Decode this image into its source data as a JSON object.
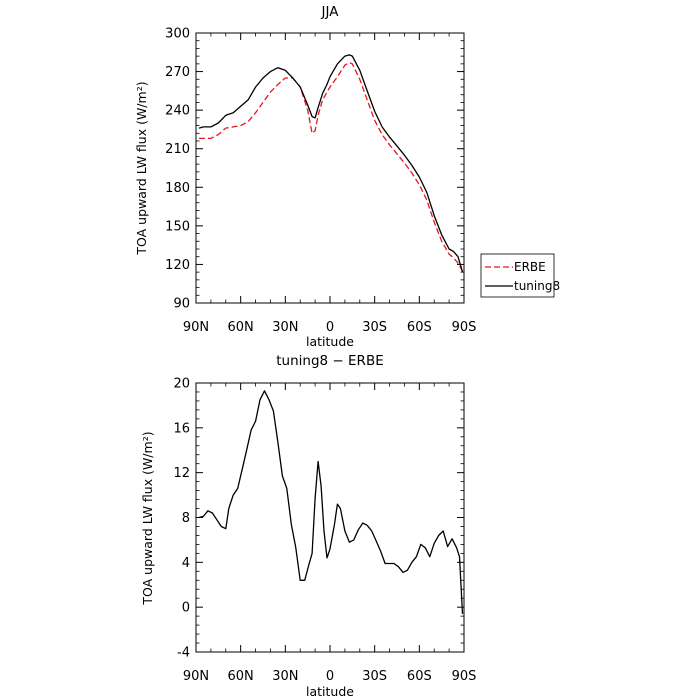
{
  "chart_data": [
    {
      "type": "line",
      "title": "JJA",
      "xlabel": "latitude",
      "ylabel": "TOA upward LW flux (W/m²)",
      "xlim": [
        90,
        -90
      ],
      "ylim": [
        90,
        300
      ],
      "xticks": [
        90,
        60,
        30,
        0,
        -30,
        -60,
        -90
      ],
      "xtick_labels": [
        "90N",
        "60N",
        "30N",
        "0",
        "30S",
        "60S",
        "90S"
      ],
      "yticks": [
        90,
        120,
        150,
        180,
        210,
        240,
        270,
        300
      ],
      "ytick_labels": [
        "90",
        "120",
        "150",
        "180",
        "210",
        "240",
        "270",
        "300"
      ],
      "legend_position": "outside-right",
      "series": [
        {
          "name": "ERBE",
          "color": "#e8141e",
          "style": "dashed",
          "x": [
            88,
            85,
            80,
            75,
            70,
            65,
            60,
            55,
            50,
            45,
            40,
            35,
            30,
            25,
            20,
            15,
            12,
            10,
            8,
            5,
            2,
            0,
            -5,
            -10,
            -13,
            -15,
            -20,
            -25,
            -30,
            -35,
            -40,
            -45,
            -50,
            -55,
            -60,
            -65,
            -70,
            -75,
            -80,
            -83,
            -86,
            -89
          ],
          "y": [
            218,
            218,
            218,
            221,
            226,
            227,
            228,
            231,
            238,
            246,
            254,
            260,
            265,
            265,
            258,
            240,
            222,
            224,
            236,
            248,
            254,
            258,
            266,
            275,
            277,
            276,
            264,
            248,
            232,
            221,
            213,
            206,
            199,
            191,
            182,
            170,
            153,
            138,
            128,
            125,
            121,
            115
          ]
        },
        {
          "name": "tuning8",
          "color": "#000000",
          "style": "solid",
          "x": [
            88,
            85,
            80,
            75,
            70,
            65,
            60,
            55,
            50,
            45,
            40,
            35,
            30,
            25,
            20,
            15,
            12,
            10,
            8,
            5,
            2,
            0,
            -5,
            -10,
            -13,
            -15,
            -20,
            -25,
            -30,
            -35,
            -40,
            -45,
            -50,
            -55,
            -60,
            -65,
            -70,
            -75,
            -80,
            -83,
            -86,
            -89
          ],
          "y": [
            226,
            227,
            227,
            230,
            236,
            238,
            243,
            248,
            258,
            265,
            270,
            273,
            271,
            265,
            258,
            244,
            235,
            234,
            242,
            253,
            260,
            266,
            276,
            282,
            283,
            282,
            271,
            255,
            239,
            227,
            219,
            212,
            205,
            197,
            188,
            176,
            158,
            143,
            132,
            130,
            126,
            114
          ]
        }
      ]
    },
    {
      "type": "line",
      "title": "tuning8 − ERBE",
      "xlabel": "latitude",
      "ylabel": "TOA upward LW flux (W/m²)",
      "xlim": [
        90,
        -90
      ],
      "ylim": [
        -4,
        20
      ],
      "xticks": [
        90,
        60,
        30,
        0,
        -30,
        -60,
        -90
      ],
      "xtick_labels": [
        "90N",
        "60N",
        "30N",
        "0",
        "30S",
        "60S",
        "90S"
      ],
      "yticks": [
        -4,
        0,
        4,
        8,
        12,
        16,
        20
      ],
      "ytick_labels": [
        "-4",
        "0",
        "4",
        "8",
        "12",
        "16",
        "20"
      ],
      "series": [
        {
          "color": "#000000",
          "style": "solid",
          "x": [
            88,
            85,
            82,
            79,
            76,
            73,
            70,
            68,
            65,
            62,
            59,
            56,
            53,
            50,
            47,
            44,
            41,
            38,
            35,
            32,
            29,
            26,
            23,
            20,
            17,
            14,
            12,
            10,
            8,
            6,
            4,
            2,
            0,
            -3,
            -5,
            -7,
            -10,
            -13,
            -16,
            -19,
            -22,
            -25,
            -28,
            -31,
            -34,
            -37,
            -40,
            -43,
            -46,
            -49,
            -52,
            -55,
            -58,
            -61,
            -64,
            -67,
            -70,
            -73,
            -76,
            -79,
            -82,
            -85,
            -87,
            -89
          ],
          "y": [
            8.0,
            8.1,
            8.6,
            8.4,
            7.8,
            7.2,
            7.0,
            8.8,
            10.0,
            10.6,
            12.3,
            14.0,
            15.8,
            16.6,
            18.5,
            19.3,
            18.5,
            17.5,
            14.7,
            11.7,
            10.6,
            7.4,
            5.3,
            2.4,
            2.4,
            3.9,
            4.8,
            9.7,
            13.0,
            10.8,
            6.8,
            4.4,
            5.2,
            7.4,
            9.2,
            8.8,
            6.8,
            5.8,
            6.0,
            6.9,
            7.5,
            7.3,
            6.8,
            5.9,
            5.0,
            3.9,
            3.9,
            3.9,
            3.6,
            3.1,
            3.3,
            4.0,
            4.5,
            5.6,
            5.3,
            4.5,
            5.7,
            6.4,
            6.8,
            5.4,
            6.1,
            5.3,
            4.5,
            -0.6
          ]
        }
      ]
    }
  ]
}
